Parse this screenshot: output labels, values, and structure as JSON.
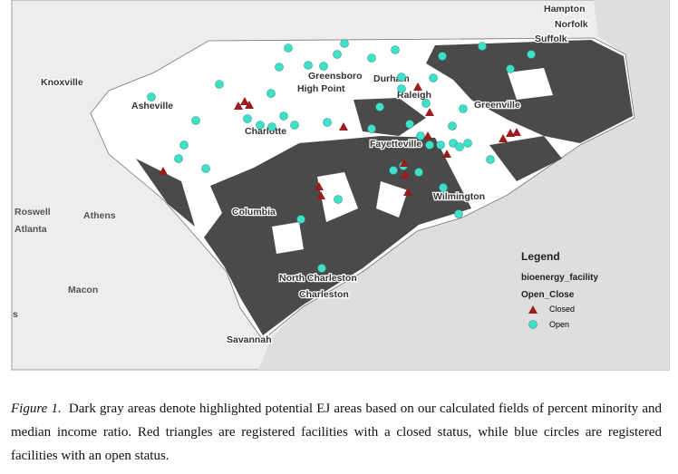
{
  "map": {
    "labels": [
      "Hampton",
      "Norfolk",
      "Suffolk",
      "Knoxville",
      "Asheville",
      "Greensboro",
      "High Point",
      "Durham",
      "Raleigh",
      "Greenville",
      "Charlotte",
      "Fayetteville",
      "Wilmington",
      "Roswell",
      "Atlanta",
      "Athens",
      "Columbia",
      "North Charleston",
      "Charleston",
      "Macon",
      "Savannah",
      "s"
    ]
  },
  "legend": {
    "title": "Legend",
    "layer": "bioenergy_facility",
    "field": "Open_Close",
    "items": [
      {
        "label": "Closed"
      },
      {
        "label": "Open"
      }
    ]
  },
  "caption": {
    "label": "Figure 1.",
    "text": "Dark gray areas denote highlighted potential EJ areas based on our calculated fields of percent minority and median income ratio. Red triangles are registered facilities with a closed status, while blue circles are registered facilities with an open status."
  }
}
